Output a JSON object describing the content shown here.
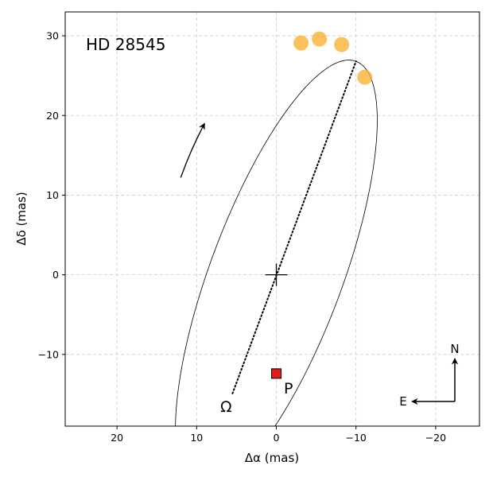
{
  "chart_data": {
    "type": "scatter",
    "title": "HD 28545",
    "xlabel": "Δα (mas)",
    "ylabel": "Δδ (mas)",
    "xlim": [
      26.5,
      -25.5
    ],
    "ylim": [
      -19,
      33
    ],
    "x_ticks": [
      20,
      10,
      0,
      -10,
      -20
    ],
    "y_ticks": [
      -10,
      0,
      10,
      20,
      30
    ],
    "x_tick_labels": [
      "20",
      "10",
      "0",
      "−10",
      "−20"
    ],
    "y_tick_labels": [
      "−10",
      "0",
      "10",
      "20",
      "30"
    ],
    "grid": true,
    "colors": {
      "observations": "#f9b233",
      "periastron": "#e41a1c",
      "orbit": "#000000",
      "grid": "#cccccc"
    },
    "orbit": {
      "center": [
        0.0,
        0.0
      ],
      "semi_major_vertex": [
        -10.0,
        26.8
      ],
      "semi_minor": 8.3
    },
    "line_of_nodes": {
      "from": [
        5.5,
        -14.9
      ],
      "to": [
        -10.0,
        26.8
      ]
    },
    "observations": [
      {
        "x": -3.1,
        "y": 29.1
      },
      {
        "x": -5.4,
        "y": 29.6
      },
      {
        "x": -8.2,
        "y": 28.9
      },
      {
        "x": -11.1,
        "y": 24.8
      }
    ],
    "center_marker": {
      "x": 0.0,
      "y": 0.0,
      "symbol": "+"
    },
    "periastron": {
      "x": 0.0,
      "y": -12.4,
      "label": "P"
    },
    "node": {
      "x": 5.5,
      "y": -14.9,
      "label": "Ω"
    },
    "motion_arrow": {
      "from": [
        12.0,
        12.2
      ],
      "to": [
        9.0,
        19.0
      ]
    },
    "compass": {
      "north": "N",
      "east": "E"
    }
  }
}
